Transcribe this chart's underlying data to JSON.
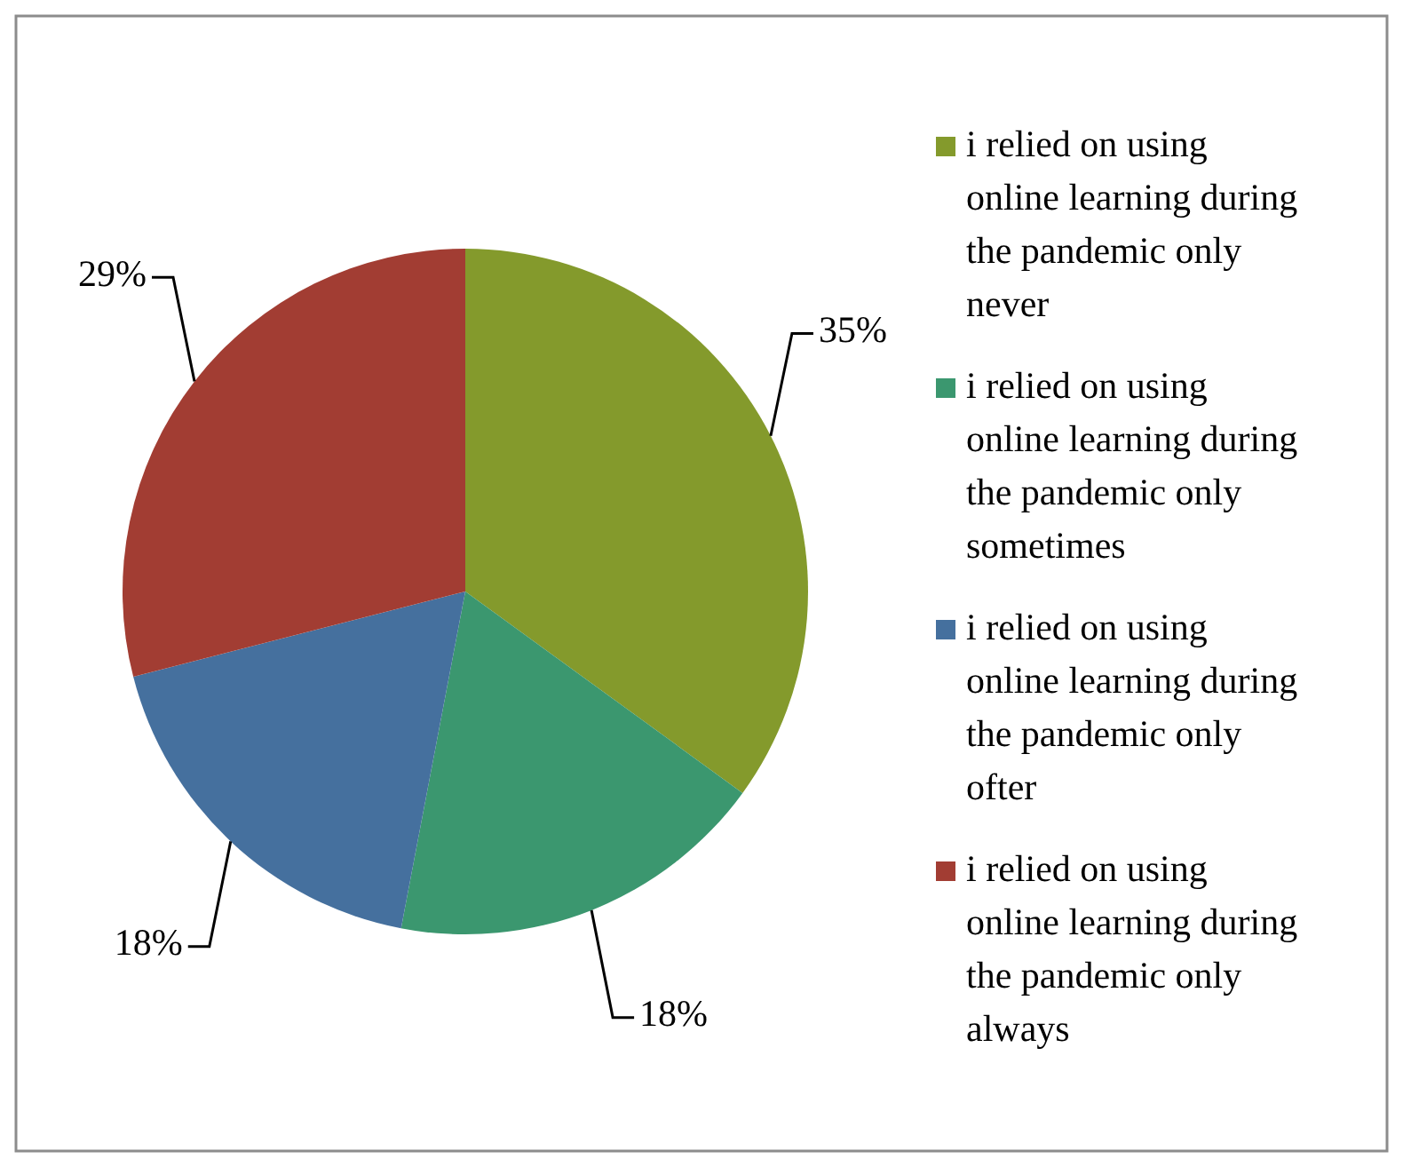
{
  "chart_data": {
    "type": "pie",
    "categories": [
      "i relied on using online learning during the pandemic only never",
      "i relied on using online learning during the pandemic only sometimes",
      "i relied on using online learning during the pandemic only ofter",
      "i relied on using online learning during the pandemic only always"
    ],
    "values": [
      35,
      18,
      18,
      29
    ],
    "value_labels": [
      "35%",
      "18%",
      "18%",
      "29%"
    ],
    "colors": [
      "#849a2c",
      "#3b976f",
      "#45709e",
      "#a23d33"
    ],
    "legend": "right"
  }
}
